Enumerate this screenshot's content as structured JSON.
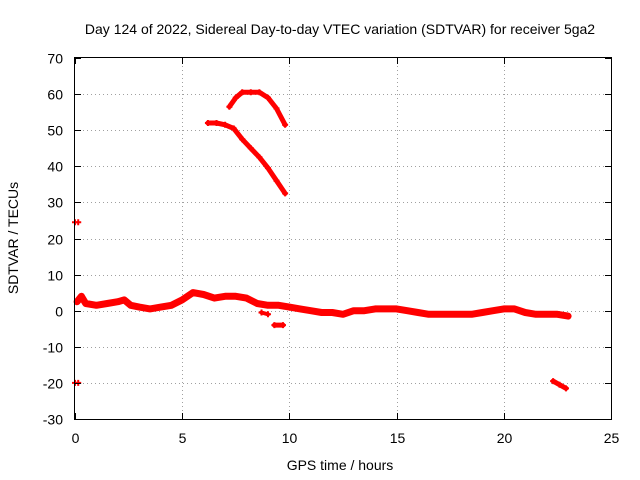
{
  "chart_data": {
    "type": "scatter",
    "title": "Day 124 of 2022, Sidereal Day-to-day VTEC variation (SDTVAR) for receiver 5ga2",
    "xlabel": "GPS time / hours",
    "ylabel": "SDTVAR / TECUs",
    "xlim": [
      0,
      25
    ],
    "ylim": [
      -30,
      70
    ],
    "xticks": [
      0,
      5,
      10,
      15,
      20,
      25
    ],
    "yticks": [
      -30,
      -20,
      -10,
      0,
      10,
      20,
      30,
      40,
      50,
      60,
      70
    ],
    "grid": true,
    "legend": "none",
    "series_color": "#ff0000",
    "series": [
      {
        "name": "main-band",
        "x": [
          0.1,
          0.3,
          0.5,
          1.0,
          1.5,
          2.0,
          2.3,
          2.6,
          3.0,
          3.5,
          4.0,
          4.5,
          5.0,
          5.5,
          6.0,
          6.5,
          7.0,
          7.5,
          8.0,
          8.5,
          9.0,
          9.5,
          10.0,
          10.5,
          11.0,
          11.5,
          12.0,
          12.5,
          13.0,
          13.5,
          14.0,
          14.5,
          15.0,
          15.5,
          16.0,
          16.5,
          17.0,
          17.5,
          18.0,
          18.5,
          19.0,
          19.5,
          20.0,
          20.5,
          21.0,
          21.5,
          22.0,
          22.5,
          23.0
        ],
        "y": [
          2.5,
          4.0,
          2.0,
          1.5,
          2.0,
          2.5,
          3.0,
          1.5,
          1.0,
          0.5,
          1.0,
          1.5,
          3.0,
          5.0,
          4.5,
          3.5,
          4.0,
          4.0,
          3.5,
          2.0,
          1.5,
          1.5,
          1.0,
          0.5,
          0.0,
          -0.5,
          -0.5,
          -1.0,
          0.0,
          0.0,
          0.5,
          0.5,
          0.5,
          0.0,
          -0.5,
          -1.0,
          -1.0,
          -1.0,
          -1.0,
          -1.0,
          -0.5,
          0.0,
          0.5,
          0.5,
          -0.5,
          -1.0,
          -1.0,
          -1.0,
          -1.5
        ]
      },
      {
        "name": "upper-arc",
        "x": [
          7.2,
          7.5,
          7.8,
          8.2,
          8.6,
          9.0,
          9.4,
          9.8
        ],
        "y": [
          56.5,
          59.0,
          60.5,
          60.5,
          60.5,
          59.0,
          56.0,
          51.5
        ]
      },
      {
        "name": "descending-arc",
        "x": [
          6.2,
          6.6,
          7.0,
          7.4,
          7.8,
          8.2,
          8.6,
          9.0,
          9.4,
          9.8
        ],
        "y": [
          52.0,
          52.0,
          51.5,
          50.5,
          47.5,
          45.0,
          42.5,
          39.5,
          36.0,
          32.5
        ]
      },
      {
        "name": "dip-segment",
        "x": [
          9.3,
          9.7
        ],
        "y": [
          -4.0,
          -4.0
        ]
      },
      {
        "name": "small-dip",
        "x": [
          8.7,
          9.0
        ],
        "y": [
          -0.5,
          -1.0
        ]
      },
      {
        "name": "tail-segment",
        "x": [
          22.3,
          22.6,
          22.9
        ],
        "y": [
          -19.5,
          -20.5,
          -21.5
        ]
      },
      {
        "name": "left-mark-upper",
        "x": [
          0.0,
          0.15
        ],
        "y": [
          24.5,
          24.5
        ]
      },
      {
        "name": "left-mark-lower",
        "x": [
          0.0,
          0.15
        ],
        "y": [
          -20.0,
          -20.0
        ]
      }
    ]
  }
}
